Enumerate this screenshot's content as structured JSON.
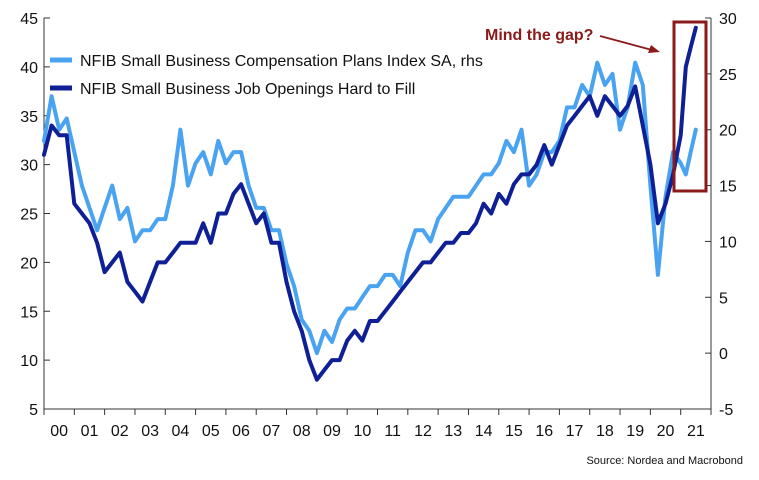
{
  "chart_data": {
    "type": "line",
    "source": "Source: Nordea and Macrobond",
    "annotation": "Mind the gap?",
    "legend_placement": "top-left",
    "grid": false,
    "colors": {
      "light": "#4aa3f0",
      "dark": "#0f1f96",
      "annotation": "#8b1a1a"
    },
    "x_ticks": [
      "00",
      "01",
      "02",
      "03",
      "04",
      "05",
      "06",
      "07",
      "08",
      "09",
      "10",
      "11",
      "12",
      "13",
      "14",
      "15",
      "16",
      "17",
      "18",
      "19",
      "20",
      "21"
    ],
    "x_range": [
      2000,
      2022
    ],
    "y_left": {
      "range": [
        5,
        45
      ],
      "ticks": [
        "5",
        "10",
        "15",
        "20",
        "25",
        "30",
        "35",
        "40",
        "45"
      ]
    },
    "y_right": {
      "range": [
        -5,
        30
      ],
      "ticks": [
        "-5",
        "0",
        "5",
        "10",
        "15",
        "20",
        "25",
        "30"
      ]
    },
    "series": [
      {
        "name": "NFIB Small Business Compensation Plans Index SA, rhs",
        "axis": "right",
        "color": "#4aa3f0",
        "x": [
          2000.0,
          2000.25,
          2000.5,
          2000.75,
          2001.0,
          2001.25,
          2001.5,
          2001.75,
          2002.0,
          2002.25,
          2002.5,
          2002.75,
          2003.0,
          2003.25,
          2003.5,
          2003.75,
          2004.0,
          2004.25,
          2004.5,
          2004.75,
          2005.0,
          2005.25,
          2005.5,
          2005.75,
          2006.0,
          2006.25,
          2006.5,
          2006.75,
          2007.0,
          2007.25,
          2007.5,
          2007.75,
          2008.0,
          2008.25,
          2008.5,
          2008.75,
          2009.0,
          2009.25,
          2009.5,
          2009.75,
          2010.0,
          2010.25,
          2010.5,
          2010.75,
          2011.0,
          2011.25,
          2011.5,
          2011.75,
          2012.0,
          2012.25,
          2012.5,
          2012.75,
          2013.0,
          2013.25,
          2013.5,
          2013.75,
          2014.0,
          2014.25,
          2014.5,
          2014.75,
          2015.0,
          2015.25,
          2015.5,
          2015.75,
          2016.0,
          2016.25,
          2016.5,
          2016.75,
          2017.0,
          2017.25,
          2017.5,
          2017.75,
          2018.0,
          2018.25,
          2018.5,
          2018.75,
          2019.0,
          2019.25,
          2019.5,
          2019.75,
          2020.0,
          2020.25,
          2020.5,
          2020.75,
          2021.0,
          2021.17,
          2021.33,
          2021.5
        ],
        "values": [
          19,
          23,
          20,
          21,
          18,
          15,
          13,
          11,
          13,
          15,
          12,
          13,
          10,
          11,
          11,
          12,
          12,
          15,
          20,
          15,
          17,
          18,
          16,
          19,
          17,
          18,
          18,
          15,
          13,
          13,
          11,
          11,
          8,
          6,
          3,
          2,
          0,
          2,
          1,
          3,
          4,
          4,
          5,
          6,
          6,
          7,
          7,
          6,
          9,
          11,
          11,
          10,
          12,
          13,
          14,
          14,
          14,
          15,
          16,
          16,
          17,
          19,
          18,
          20,
          15,
          16,
          18,
          18,
          19,
          22,
          22,
          24,
          23,
          26,
          24,
          25,
          20,
          22,
          26,
          24,
          15,
          7,
          14,
          18,
          17,
          16,
          18,
          20
        ]
      },
      {
        "name": "NFIB Small Business Job Openings Hard to Fill",
        "axis": "left",
        "color": "#0f1f96",
        "x": [
          2000.0,
          2000.25,
          2000.5,
          2000.75,
          2001.0,
          2001.25,
          2001.5,
          2001.75,
          2002.0,
          2002.25,
          2002.5,
          2002.75,
          2003.0,
          2003.25,
          2003.5,
          2003.75,
          2004.0,
          2004.25,
          2004.5,
          2004.75,
          2005.0,
          2005.25,
          2005.5,
          2005.75,
          2006.0,
          2006.25,
          2006.5,
          2006.75,
          2007.0,
          2007.25,
          2007.5,
          2007.75,
          2008.0,
          2008.25,
          2008.5,
          2008.75,
          2009.0,
          2009.25,
          2009.5,
          2009.75,
          2010.0,
          2010.25,
          2010.5,
          2010.75,
          2011.0,
          2011.25,
          2011.5,
          2011.75,
          2012.0,
          2012.25,
          2012.5,
          2012.75,
          2013.0,
          2013.25,
          2013.5,
          2013.75,
          2014.0,
          2014.25,
          2014.5,
          2014.75,
          2015.0,
          2015.25,
          2015.5,
          2015.75,
          2016.0,
          2016.25,
          2016.5,
          2016.75,
          2017.0,
          2017.25,
          2017.5,
          2017.75,
          2018.0,
          2018.25,
          2018.5,
          2018.75,
          2019.0,
          2019.25,
          2019.5,
          2019.75,
          2020.0,
          2020.25,
          2020.5,
          2020.75,
          2021.0,
          2021.17,
          2021.33,
          2021.5
        ],
        "values": [
          31,
          34,
          33,
          33,
          26,
          25,
          24,
          22,
          19,
          20,
          21,
          18,
          17,
          16,
          18,
          20,
          20,
          21,
          22,
          22,
          22,
          24,
          22,
          25,
          25,
          27,
          28,
          26,
          24,
          25,
          22,
          22,
          18,
          15,
          13,
          10,
          8,
          9,
          10,
          10,
          12,
          13,
          12,
          14,
          14,
          15,
          16,
          17,
          18,
          19,
          20,
          20,
          21,
          22,
          22,
          23,
          23,
          24,
          26,
          25,
          27,
          26,
          28,
          29,
          29,
          30,
          32,
          30,
          32,
          34,
          35,
          36,
          37,
          35,
          37,
          36,
          35,
          36,
          38,
          34,
          30,
          24,
          26,
          29,
          33,
          40,
          42,
          44
        ]
      }
    ]
  }
}
